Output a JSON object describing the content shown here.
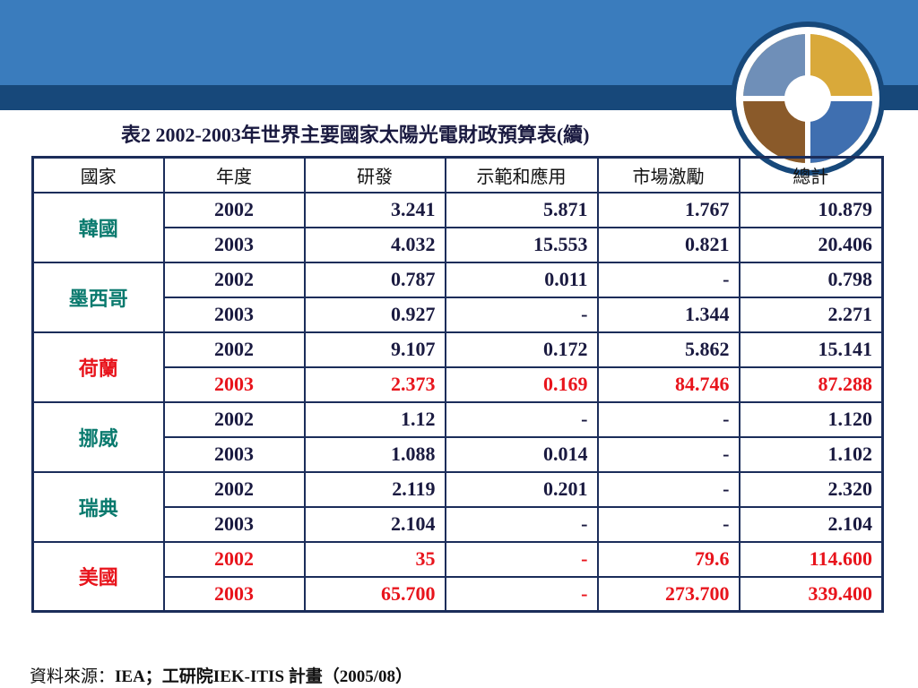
{
  "slide": {
    "title": "表2  2002-2003年世界主要國家太陽光電財政預算表(續)",
    "source_prefix": "資料來源：",
    "source_text": "IEA；工研院IEK-ITIS 計畫（2005/08）"
  },
  "colors": {
    "banner": "#3a7cbd",
    "banner_dark": "#17487a",
    "country_text": "#0a7a6e",
    "highlight": "#e8141c",
    "body_text": "#1a1a40"
  },
  "table": {
    "headers": [
      "國家",
      "年度",
      "研發",
      "示範和應用",
      "市場激勵",
      "總計"
    ],
    "groups": [
      {
        "country": "韓國",
        "country_highlight": false,
        "rows": [
          {
            "year": "2002",
            "rd": "3.241",
            "demo": "5.871",
            "market": "1.767",
            "total": "10.879",
            "highlight": false
          },
          {
            "year": "2003",
            "rd": "4.032",
            "demo": "15.553",
            "market": "0.821",
            "total": "20.406",
            "highlight": false
          }
        ]
      },
      {
        "country": "墨西哥",
        "country_highlight": false,
        "rows": [
          {
            "year": "2002",
            "rd": "0.787",
            "demo": "0.011",
            "market": "-",
            "total": "0.798",
            "highlight": false
          },
          {
            "year": "2003",
            "rd": "0.927",
            "demo": "-",
            "market": "1.344",
            "total": "2.271",
            "highlight": false
          }
        ]
      },
      {
        "country": "荷蘭",
        "country_highlight": true,
        "rows": [
          {
            "year": "2002",
            "rd": "9.107",
            "demo": "0.172",
            "market": "5.862",
            "total": "15.141",
            "highlight": false
          },
          {
            "year": "2003",
            "rd": "2.373",
            "demo": "0.169",
            "market": "84.746",
            "total": "87.288",
            "highlight": true
          }
        ]
      },
      {
        "country": "挪威",
        "country_highlight": false,
        "rows": [
          {
            "year": "2002",
            "rd": "1.12",
            "demo": "-",
            "market": "-",
            "total": "1.120",
            "highlight": false
          },
          {
            "year": "2003",
            "rd": "1.088",
            "demo": "0.014",
            "market": "-",
            "total": "1.102",
            "highlight": false
          }
        ]
      },
      {
        "country": "瑞典",
        "country_highlight": false,
        "rows": [
          {
            "year": "2002",
            "rd": "2.119",
            "demo": "0.201",
            "market": "-",
            "total": "2.320",
            "highlight": false
          },
          {
            "year": "2003",
            "rd": "2.104",
            "demo": "-",
            "market": "-",
            "total": "2.104",
            "highlight": false
          }
        ]
      },
      {
        "country": "美國",
        "country_highlight": true,
        "rows": [
          {
            "year": "2002",
            "rd": "35",
            "demo": "-",
            "market": "79.6",
            "total": "114.600",
            "highlight": true
          },
          {
            "year": "2003",
            "rd": "65.700",
            "demo": "-",
            "market": "273.700",
            "total": "339.400",
            "highlight": true
          }
        ]
      }
    ]
  }
}
